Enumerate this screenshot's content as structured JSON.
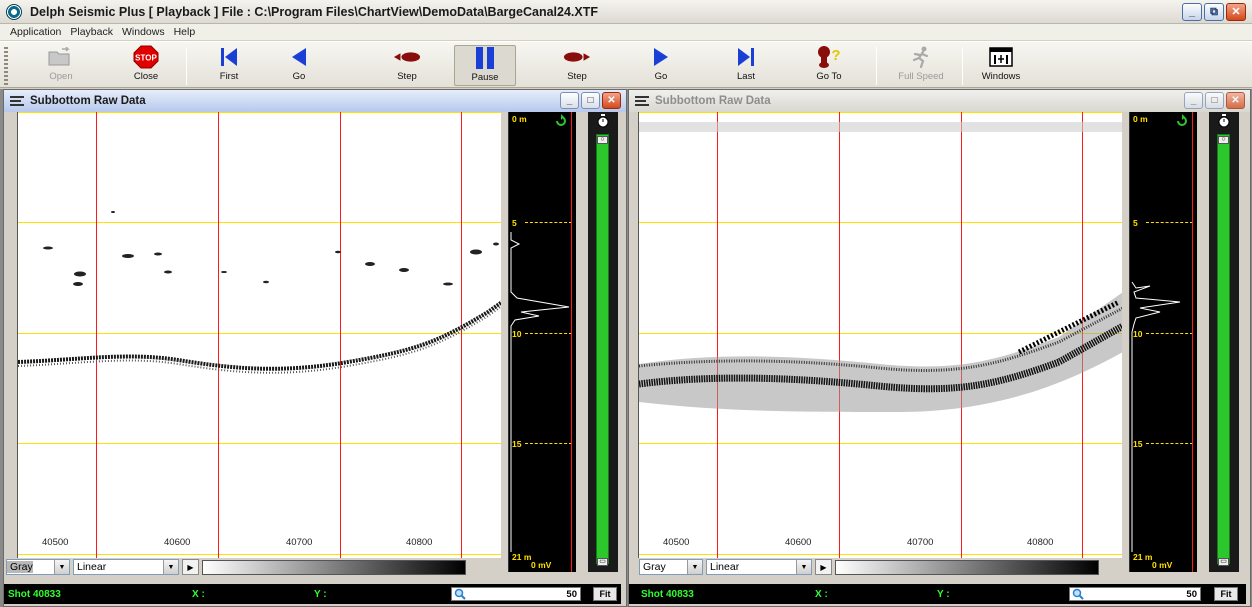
{
  "app": {
    "title": "Delph Seismic Plus [ Playback ] File : C:\\Program Files\\ChartView\\DemoData\\BargeCanal24.XTF"
  },
  "window_buttons": {
    "minimize": "_",
    "restore": "⧉",
    "close": "✕"
  },
  "menu": [
    "Application",
    "Playback",
    "Windows",
    "Help"
  ],
  "toolbar": {
    "open": "Open",
    "close": "Close",
    "stop_text": "STOP",
    "first": "First",
    "go_back": "Go",
    "step_back": "Step",
    "pause": "Pause",
    "step_fwd": "Step",
    "go_fwd": "Go",
    "last": "Last",
    "goto": "Go To",
    "full_speed": "Full Speed",
    "windows": "Windows"
  },
  "left": {
    "title": "Subbottom Raw Data",
    "xticks": [
      "40500",
      "40600",
      "40700",
      "40800"
    ],
    "depth": {
      "top": "0 m",
      "d5": "5",
      "d10": "10",
      "d15": "15",
      "bottom": "21 m",
      "bottom_v": "0 mV"
    },
    "palette": "Gray",
    "scale": "Linear",
    "status": {
      "shot": "Shot 40833",
      "x": "X :",
      "y": "Y :",
      "zoom": "50",
      "fit": "Fit"
    }
  },
  "right": {
    "title": "Subbottom Raw Data",
    "xticks": [
      "40500",
      "40600",
      "40700",
      "40800"
    ],
    "depth": {
      "top": "0 m",
      "d5": "5",
      "d10": "10",
      "d15": "15",
      "bottom": "21 m",
      "bottom_v": "0 mV"
    },
    "palette": "Gray",
    "scale": "Linear",
    "status": {
      "shot": "Shot 40833",
      "x": "X :",
      "y": "Y :",
      "zoom": "50",
      "fit": "Fit"
    }
  },
  "colors": {
    "grid_vertical": "#ff1a1a",
    "grid_horizontal": "#ffe000",
    "status_text": "#2fff2f",
    "gain_bar": "#2cc72c"
  }
}
